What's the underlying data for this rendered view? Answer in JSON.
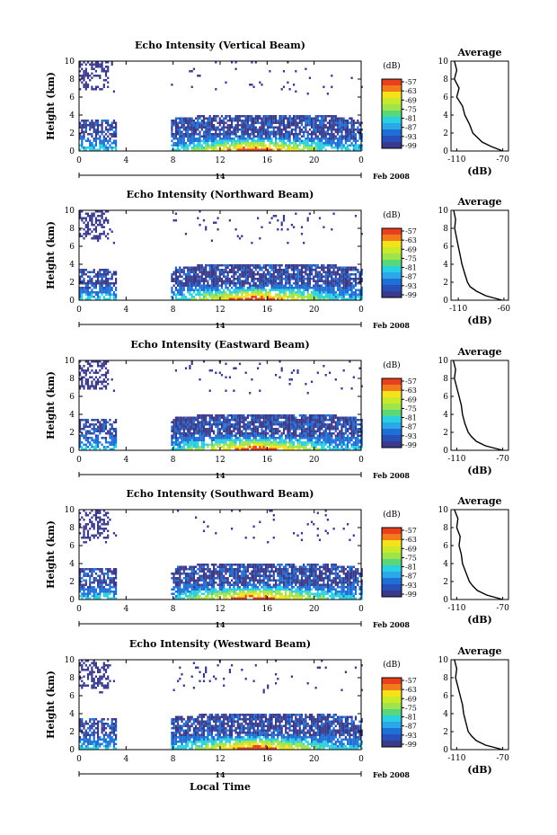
{
  "figure": {
    "xlabel": "Local Time",
    "date_label": "Feb 2008",
    "date_day": "14",
    "colorbar_unit": "(dB)",
    "avg_title": "Average",
    "avg_xlabel": "(dB)"
  },
  "colors": {
    "low": "#3a3a8c",
    "mid_low": "#1e6fd6",
    "mid": "#2bd0e0",
    "mid_high": "#9ee44a",
    "high": "#f5e21a",
    "top": "#e8401c",
    "no_data": "#ffffff"
  },
  "chart_data": [
    {
      "type": "heatmap",
      "title": "Echo Intensity (Vertical Beam)",
      "xlabel": "",
      "ylabel": "Height (km)",
      "xlim": [
        0,
        24
      ],
      "ylim": [
        0,
        10
      ],
      "x_ticks": [
        "0",
        "4",
        "8",
        "12",
        "16",
        "20",
        "0"
      ],
      "y_ticks": [
        "0",
        "2",
        "4",
        "6",
        "8",
        "10"
      ],
      "data_gap_hours": [
        3.2,
        7.7
      ],
      "colorbar_ticks": [
        "-57",
        "-63",
        "-69",
        "-75",
        "-81",
        "-87",
        "-93",
        "-99"
      ],
      "average": {
        "xlim": [
          -115,
          -65
        ],
        "x_ticks": [
          "-110",
          "-70"
        ],
        "height_km": [
          0,
          0.5,
          1,
          1.5,
          2,
          3,
          4,
          5,
          6,
          7,
          8,
          9,
          10
        ],
        "db": [
          -70,
          -80,
          -88,
          -92,
          -96,
          -99,
          -103,
          -105,
          -110,
          -108,
          -112,
          -110,
          -112
        ]
      }
    },
    {
      "type": "heatmap",
      "title": "Echo Intensity (Northward Beam)",
      "xlabel": "",
      "ylabel": "Height (km)",
      "xlim": [
        0,
        24
      ],
      "ylim": [
        0,
        10
      ],
      "x_ticks": [
        "0",
        "4",
        "8",
        "12",
        "16",
        "20",
        "0"
      ],
      "y_ticks": [
        "0",
        "2",
        "4",
        "6",
        "8",
        "10"
      ],
      "data_gap_hours": [
        3.2,
        7.7
      ],
      "colorbar_ticks": [
        "-57",
        "-63",
        "-69",
        "-75",
        "-81",
        "-87",
        "-93",
        "-99"
      ],
      "average": {
        "xlim": [
          -118,
          -55
        ],
        "x_ticks": [
          "-110",
          "-60"
        ],
        "height_km": [
          0,
          0.5,
          1,
          1.5,
          2,
          3,
          4,
          5,
          6,
          7,
          8,
          9,
          10
        ],
        "db": [
          -62,
          -80,
          -90,
          -97,
          -100,
          -103,
          -106,
          -108,
          -110,
          -112,
          -114,
          -113,
          -115
        ]
      }
    },
    {
      "type": "heatmap",
      "title": "Echo Intensity (Eastward Beam)",
      "xlabel": "",
      "ylabel": "Height (km)",
      "xlim": [
        0,
        24
      ],
      "ylim": [
        0,
        10
      ],
      "x_ticks": [
        "0",
        "4",
        "8",
        "12",
        "16",
        "20",
        "0"
      ],
      "y_ticks": [
        "0",
        "2",
        "4",
        "6",
        "8",
        "10"
      ],
      "data_gap_hours": [
        3.2,
        7.7
      ],
      "colorbar_ticks": [
        "-57",
        "-63",
        "-69",
        "-75",
        "-81",
        "-87",
        "-93",
        "-99"
      ],
      "average": {
        "xlim": [
          -115,
          -65
        ],
        "x_ticks": [
          "-110",
          "-70"
        ],
        "height_km": [
          0,
          0.5,
          1,
          1.5,
          2,
          3,
          4,
          5,
          6,
          7,
          8,
          9,
          10
        ],
        "db": [
          -70,
          -85,
          -93,
          -97,
          -100,
          -103,
          -105,
          -106,
          -108,
          -110,
          -112,
          -111,
          -113
        ]
      }
    },
    {
      "type": "heatmap",
      "title": "Echo Intensity (Southward Beam)",
      "xlabel": "",
      "ylabel": "Height (km)",
      "xlim": [
        0,
        24
      ],
      "ylim": [
        0,
        10
      ],
      "x_ticks": [
        "0",
        "4",
        "8",
        "12",
        "16",
        "20",
        "0"
      ],
      "y_ticks": [
        "0",
        "2",
        "4",
        "6",
        "8",
        "10"
      ],
      "data_gap_hours": [
        3.2,
        7.7
      ],
      "colorbar_ticks": [
        "-57",
        "-63",
        "-69",
        "-75",
        "-81",
        "-87",
        "-93",
        "-99"
      ],
      "average": {
        "xlim": [
          -115,
          -65
        ],
        "x_ticks": [
          "-110",
          "-70"
        ],
        "height_km": [
          0,
          0.5,
          1,
          1.5,
          2,
          3,
          4,
          5,
          6,
          7,
          8,
          9,
          10
        ],
        "db": [
          -70,
          -84,
          -92,
          -96,
          -99,
          -102,
          -105,
          -106,
          -108,
          -107,
          -110,
          -109,
          -112
        ]
      }
    },
    {
      "type": "heatmap",
      "title": "Echo Intensity (Westward Beam)",
      "xlabel": "Local Time",
      "ylabel": "Height (km)",
      "xlim": [
        0,
        24
      ],
      "ylim": [
        0,
        10
      ],
      "x_ticks": [
        "0",
        "4",
        "8",
        "12",
        "16",
        "20",
        "0"
      ],
      "y_ticks": [
        "0",
        "2",
        "4",
        "6",
        "8",
        "10"
      ],
      "data_gap_hours": [
        3.2,
        7.7
      ],
      "colorbar_ticks": [
        "-57",
        "-63",
        "-69",
        "-75",
        "-81",
        "-87",
        "-93",
        "-99"
      ],
      "average": {
        "xlim": [
          -115,
          -65
        ],
        "x_ticks": [
          "-110",
          "-70"
        ],
        "height_km": [
          0,
          0.5,
          1,
          1.5,
          2,
          3,
          4,
          5,
          6,
          7,
          8,
          9,
          10
        ],
        "db": [
          -70,
          -85,
          -93,
          -97,
          -100,
          -102,
          -104,
          -105,
          -107,
          -109,
          -111,
          -110,
          -112
        ]
      }
    }
  ]
}
